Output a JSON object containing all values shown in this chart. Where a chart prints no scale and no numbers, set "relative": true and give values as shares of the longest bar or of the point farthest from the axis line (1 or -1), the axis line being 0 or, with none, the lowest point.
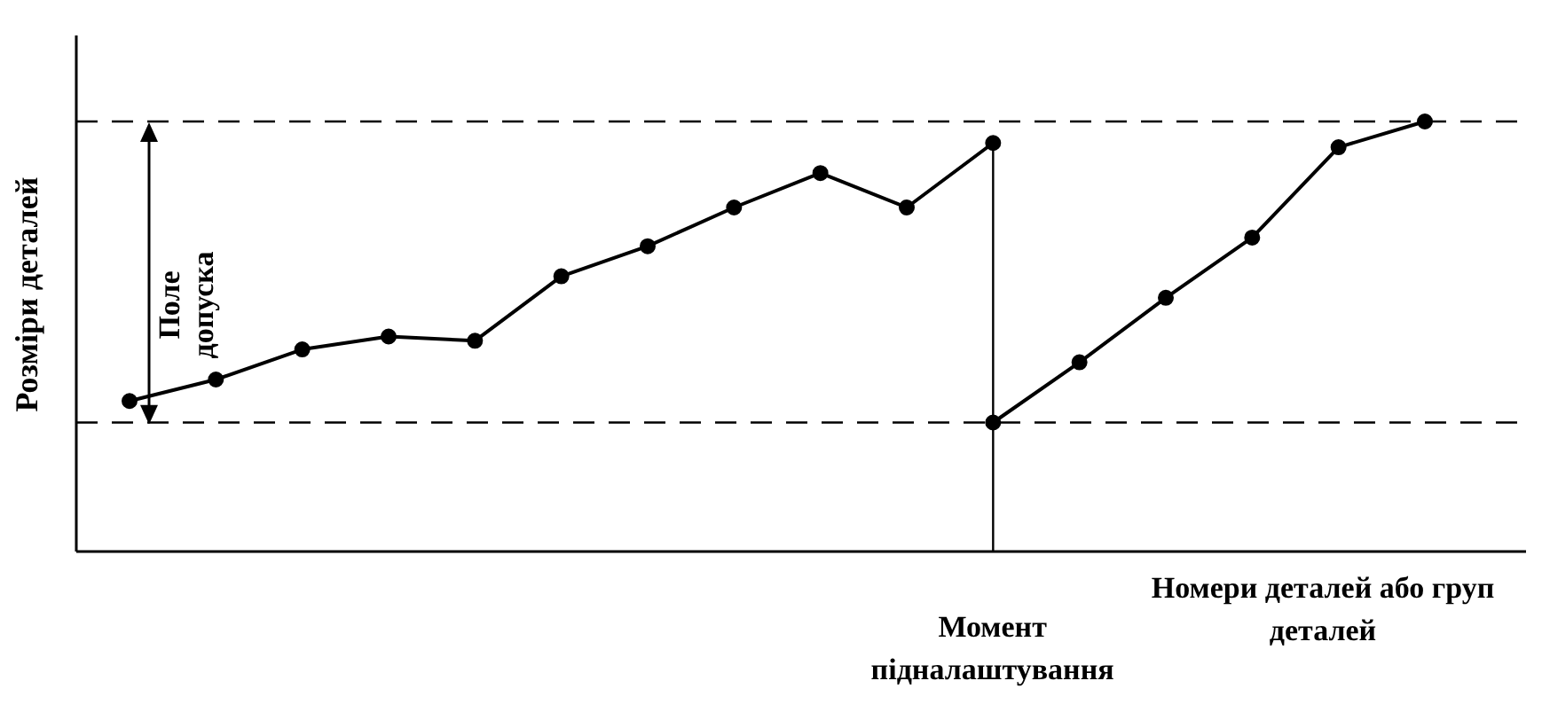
{
  "chart_data": {
    "type": "line",
    "relative": true,
    "xlabel": "Номери деталей або груп деталей",
    "ylabel": "Розміри деталей",
    "categories": [
      null,
      null,
      null,
      null,
      null,
      null,
      null,
      null,
      null,
      null,
      null,
      null,
      null,
      null,
      null,
      null
    ],
    "series": [
      {
        "color": "#000000",
        "values": [
          0.35,
          0.4,
          0.47,
          0.5,
          0.49,
          0.64,
          0.71,
          0.8,
          0.88,
          0.8,
          0.95,
          null,
          null,
          null,
          null,
          null
        ]
      },
      {
        "color": "#000000",
        "values": [
          null,
          null,
          null,
          null,
          null,
          null,
          null,
          null,
          null,
          null,
          0.3,
          0.44,
          0.59,
          0.73,
          0.94,
          1
        ]
      }
    ],
    "marker": "circle",
    "line_style": "solid",
    "ref_lines": [
      {
        "axis": "y",
        "value": 1,
        "line_style": "dashed"
      },
      {
        "axis": "y",
        "value": 0.3,
        "line_style": "dashed"
      }
    ],
    "annotations": [
      "Поле допуска",
      "Момент підналаштування"
    ]
  }
}
